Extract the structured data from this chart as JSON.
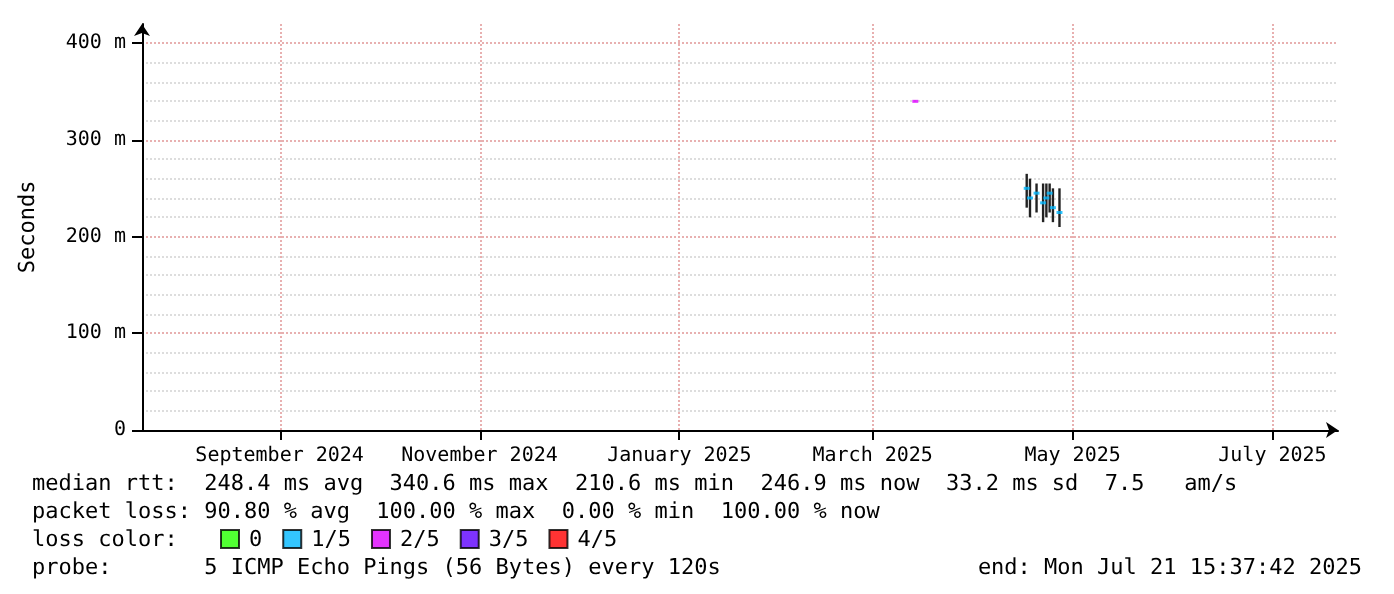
{
  "chart_data": {
    "type": "scatter",
    "ylabel": "Seconds",
    "legend_title": "loss color:",
    "legend": "bottom left",
    "grid": true,
    "marker": "square",
    "xlim": [
      "2024-07-21",
      "2025-07-21"
    ],
    "xticks": [
      {
        "value": "2024-09-01",
        "label": "September 2024"
      },
      {
        "value": "2024-11-01",
        "label": "November 2024"
      },
      {
        "value": "2025-01-01",
        "label": "January 2025"
      },
      {
        "value": "2025-03-01",
        "label": "March 2025"
      },
      {
        "value": "2025-05-01",
        "label": "May 2025"
      },
      {
        "value": "2025-07-01",
        "label": "July 2025"
      }
    ],
    "ylim": [
      0,
      420
    ],
    "yticks": [
      {
        "value": 0,
        "label": "0"
      },
      {
        "value": 100,
        "label": "100 m"
      },
      {
        "value": 200,
        "label": "200 m"
      },
      {
        "value": 300,
        "label": "300 m"
      },
      {
        "value": 400,
        "label": "400 m"
      }
    ],
    "series": [
      {
        "type": "bar",
        "color": "#222222",
        "x": [
          "2025-04-17",
          "2025-04-18",
          "2025-04-20",
          "2025-04-22",
          "2025-04-23",
          "2025-04-24",
          "2025-04-25",
          "2025-04-27"
        ],
        "base": [
          230,
          220,
          225,
          215,
          220,
          225,
          215,
          210
        ],
        "values": [
          35,
          40,
          30,
          40,
          35,
          30,
          35,
          40
        ]
      },
      {
        "name": "0",
        "color": "#26ff00"
      },
      {
        "name": "1/5",
        "color": "#00b8ff",
        "x": [
          "2025-04-17",
          "2025-04-18",
          "2025-04-20",
          "2025-04-22",
          "2025-04-23",
          "2025-04-24",
          "2025-04-25",
          "2025-04-27"
        ],
        "values": [
          250,
          240,
          245,
          235,
          240,
          245,
          230,
          225
        ]
      },
      {
        "name": "2/5",
        "color": "#dd00ff",
        "x": [
          "2025-03-14"
        ],
        "values": [
          340
        ]
      },
      {
        "name": "3/5",
        "color": "#5e00ff"
      },
      {
        "name": "4/5",
        "color": "#ff0000"
      }
    ],
    "annotations": [
      "median rtt:  248.4 ms avg  340.6 ms max  210.6 ms min  246.9 ms now  33.2 ms sd  7.5   am/s",
      "packet loss: 90.80 % avg  100.00 % max  0.00 % min  100.00 % now",
      "probe:       5 ICMP Echo Pings (56 Bytes) every 120s",
      "end: Mon Jul 21 15:37:42 2025"
    ]
  }
}
